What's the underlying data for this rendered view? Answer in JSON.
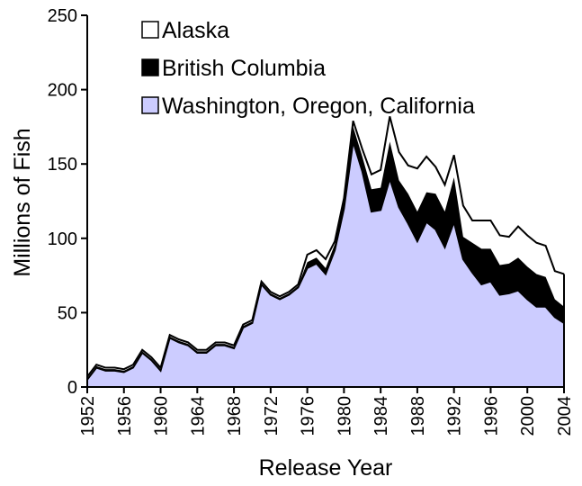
{
  "chart_data": {
    "type": "stacked_area",
    "xlabel": "Release Year",
    "ylabel": "Millions of Fish",
    "x": [
      1952,
      1953,
      1954,
      1955,
      1956,
      1957,
      1958,
      1959,
      1960,
      1961,
      1962,
      1963,
      1964,
      1965,
      1966,
      1967,
      1968,
      1969,
      1970,
      1971,
      1972,
      1973,
      1974,
      1975,
      1976,
      1977,
      1978,
      1979,
      1980,
      1981,
      1982,
      1983,
      1984,
      1985,
      1986,
      1987,
      1988,
      1989,
      1990,
      1991,
      1992,
      1993,
      1994,
      1995,
      1996,
      1997,
      1998,
      1999,
      2000,
      2001,
      2002,
      2003,
      2004
    ],
    "series": [
      {
        "name": "Alaska",
        "color": "#ffffff",
        "values": [
          1,
          1,
          1,
          1,
          1,
          1,
          1,
          1,
          1,
          1,
          1,
          1,
          1,
          1,
          1,
          1,
          1,
          1,
          1,
          1,
          1,
          1,
          1,
          1,
          5,
          5,
          6,
          2,
          2,
          4,
          5,
          10,
          12,
          17,
          19,
          19,
          29,
          24,
          18,
          18,
          15,
          21,
          15,
          19,
          19,
          20,
          18,
          21,
          21,
          21,
          21,
          19,
          22
        ]
      },
      {
        "name": "British Columbia",
        "color": "#000000",
        "values": [
          1,
          1,
          1,
          1,
          1,
          1,
          1,
          1,
          1,
          1,
          1,
          1,
          1,
          1,
          1,
          1,
          1,
          1,
          1,
          1,
          1,
          1,
          1,
          1,
          4,
          4,
          4,
          4,
          5,
          10,
          10,
          15,
          15,
          25,
          18,
          20,
          20,
          20,
          24,
          24,
          30,
          15,
          20,
          24,
          22,
          20,
          20,
          22,
          22,
          22,
          20,
          12,
          11
        ]
      },
      {
        "name": "Washington, Oregon, California",
        "color": "#ccccff",
        "values": [
          5,
          13,
          11,
          11,
          10,
          13,
          23,
          18,
          11,
          33,
          30,
          28,
          23,
          23,
          28,
          28,
          26,
          40,
          43,
          69,
          62,
          59,
          62,
          67,
          80,
          83,
          76,
          92,
          120,
          165,
          145,
          118,
          119,
          140,
          121,
          110,
          98,
          111,
          106,
          94,
          111,
          86,
          77,
          69,
          71,
          62,
          63,
          65,
          59,
          54,
          54,
          47,
          43
        ]
      }
    ],
    "xlim": [
      1952,
      2004
    ],
    "xticks": [
      1952,
      1956,
      1960,
      1964,
      1968,
      1972,
      1976,
      1980,
      1984,
      1988,
      1992,
      1996,
      2000,
      2004
    ],
    "ylim": [
      0,
      250
    ],
    "yticks": [
      0,
      50,
      100,
      150,
      200,
      250
    ],
    "legend": "upper left"
  }
}
